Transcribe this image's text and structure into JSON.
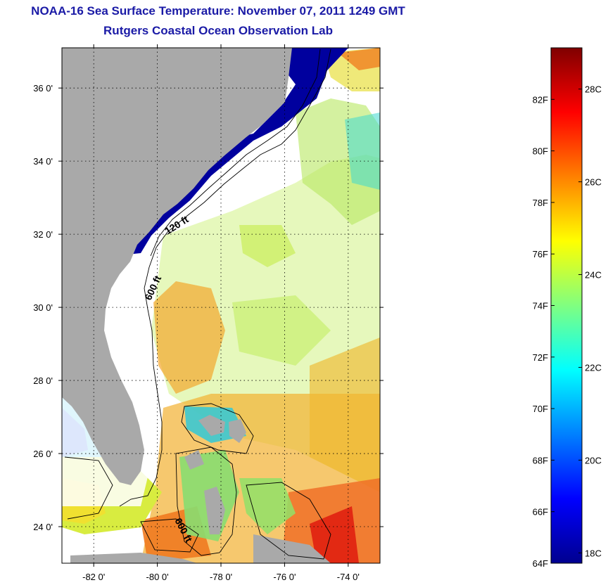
{
  "header": {
    "title": "NOAA-16 Sea Surface Temperature:  November 07, 2011 1249 GMT",
    "subtitle": "Rutgers Coastal Ocean Observation Lab"
  },
  "map": {
    "lon_range": [
      -83.0,
      -73.0
    ],
    "lat_range": [
      23.0,
      37.1
    ],
    "lat_ticks": [
      {
        "value": 36,
        "label": "36 0'"
      },
      {
        "value": 34,
        "label": "34 0'"
      },
      {
        "value": 32,
        "label": "32 0'"
      },
      {
        "value": 30,
        "label": "30 0'"
      },
      {
        "value": 28,
        "label": "28 0'"
      },
      {
        "value": 26,
        "label": "26 0'"
      },
      {
        "value": 24,
        "label": "24 0'"
      }
    ],
    "lon_ticks": [
      {
        "value": -82,
        "label": "-82 0'"
      },
      {
        "value": -80,
        "label": "-80 0'"
      },
      {
        "value": -78,
        "label": "-78 0'"
      },
      {
        "value": -76,
        "label": "-76 0'"
      },
      {
        "value": -74,
        "label": "-74 0'"
      }
    ],
    "grid": "dotted",
    "land_color": "#a9a9a9",
    "isobath_labels": [
      "120 ft",
      "600 ft",
      "600 ft"
    ]
  },
  "colorbar": {
    "min_f": 64,
    "max_f": 84,
    "fahrenheit_ticks": [
      {
        "value": 82,
        "label": "82F"
      },
      {
        "value": 80,
        "label": "80F"
      },
      {
        "value": 78,
        "label": "78F"
      },
      {
        "value": 76,
        "label": "76F"
      },
      {
        "value": 74,
        "label": "74F"
      },
      {
        "value": 72,
        "label": "72F"
      },
      {
        "value": 70,
        "label": "70F"
      },
      {
        "value": 68,
        "label": "68F"
      },
      {
        "value": 66,
        "label": "66F"
      },
      {
        "value": 64,
        "label": "64F"
      }
    ],
    "celsius_ticks": [
      {
        "value": 28,
        "label": "28C"
      },
      {
        "value": 26,
        "label": "26C"
      },
      {
        "value": 24,
        "label": "24C"
      },
      {
        "value": 22,
        "label": "22C"
      },
      {
        "value": 20,
        "label": "20C"
      },
      {
        "value": 18,
        "label": "18C"
      }
    ],
    "colormap": [
      "#00008f",
      "#0000ff",
      "#0080ff",
      "#00ffff",
      "#80ff80",
      "#ffff00",
      "#ff8000",
      "#ff0000",
      "#800000"
    ]
  }
}
